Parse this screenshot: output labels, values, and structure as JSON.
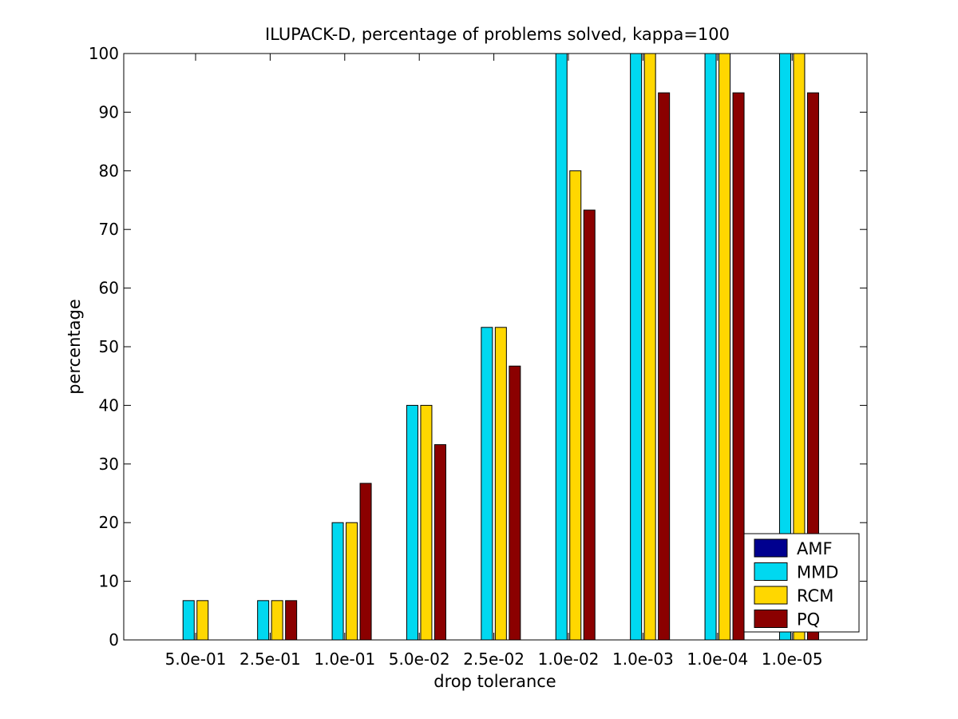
{
  "chart_data": {
    "type": "bar",
    "title": "ILUPACK-D, percentage of problems solved, kappa=100",
    "xlabel": "drop tolerance",
    "ylabel": "percentage",
    "ylim": [
      0,
      100
    ],
    "yticks": [
      0,
      10,
      20,
      30,
      40,
      50,
      60,
      70,
      80,
      90,
      100
    ],
    "categories": [
      "5.0e-01",
      "2.5e-01",
      "1.0e-01",
      "5.0e-02",
      "2.5e-02",
      "1.0e-02",
      "1.0e-03",
      "1.0e-04",
      "1.0e-05"
    ],
    "series": [
      {
        "name": "AMF",
        "color": "#00008f",
        "values": [
          0,
          0,
          0,
          0,
          0,
          0,
          0,
          0,
          0
        ]
      },
      {
        "name": "MMD",
        "color": "#00d8f0",
        "values": [
          6.7,
          6.7,
          20,
          40,
          53.3,
          100,
          100,
          100,
          100
        ]
      },
      {
        "name": "RCM",
        "color": "#ffd700",
        "values": [
          6.7,
          6.7,
          20,
          40,
          53.3,
          80,
          100,
          100,
          100
        ]
      },
      {
        "name": "PQ",
        "color": "#8b0000",
        "values": [
          0,
          6.7,
          26.7,
          33.3,
          46.7,
          73.3,
          93.3,
          93.3,
          93.3
        ]
      }
    ],
    "grid": false,
    "legend_position": "bottom-right"
  }
}
